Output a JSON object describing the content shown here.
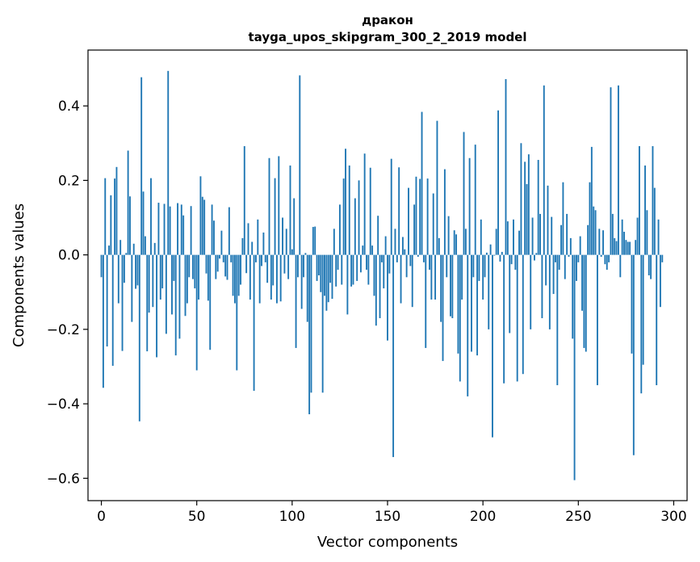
{
  "chart_data": {
    "type": "bar",
    "title": [
      "дракон",
      "tayga_upos_skipgram_300_2_2019 model"
    ],
    "xlabel": "Vector components",
    "ylabel": "Components values",
    "xlim": [
      -7,
      307
    ],
    "ylim": [
      -0.66,
      0.55
    ],
    "xticks": [
      0,
      50,
      100,
      150,
      200,
      250,
      300
    ],
    "xtick_labels": [
      "0",
      "50",
      "100",
      "150",
      "200",
      "250",
      "300"
    ],
    "yticks": [
      -0.6,
      -0.4,
      -0.2,
      0.0,
      0.2,
      0.4
    ],
    "ytick_labels": [
      "−0.6",
      "−0.4",
      "−0.2",
      "0.0",
      "0.2",
      "0.4"
    ],
    "bar_color": "#1f77b4",
    "grid": false,
    "legend": "none",
    "values": [
      -0.06,
      -0.357,
      0.206,
      -0.246,
      0.025,
      0.16,
      -0.298,
      0.205,
      0.236,
      -0.13,
      0.04,
      -0.258,
      -0.075,
      0.005,
      0.28,
      0.157,
      -0.18,
      0.03,
      -0.091,
      -0.082,
      -0.447,
      0.477,
      0.17,
      0.05,
      -0.259,
      -0.155,
      0.206,
      -0.14,
      0.032,
      -0.275,
      0.14,
      -0.12,
      -0.09,
      0.137,
      -0.212,
      0.494,
      0.13,
      -0.16,
      -0.07,
      -0.27,
      0.139,
      -0.225,
      0.135,
      0.106,
      -0.164,
      -0.13,
      -0.06,
      0.131,
      -0.065,
      -0.09,
      -0.31,
      -0.12,
      0.211,
      0.156,
      0.148,
      -0.05,
      -0.123,
      -0.255,
      0.135,
      0.092,
      -0.065,
      -0.045,
      -0.01,
      0.065,
      -0.02,
      -0.058,
      -0.067,
      0.128,
      -0.02,
      -0.11,
      -0.13,
      -0.31,
      -0.11,
      -0.08,
      0.045,
      0.292,
      -0.049,
      0.085,
      -0.12,
      0.035,
      -0.365,
      -0.02,
      0.095,
      -0.13,
      -0.03,
      0.06,
      -0.02,
      -0.075,
      0.26,
      -0.12,
      -0.082,
      0.206,
      -0.13,
      0.265,
      -0.125,
      0.1,
      -0.05,
      0.07,
      -0.065,
      0.24,
      0.015,
      0.152,
      -0.25,
      -0.06,
      0.482,
      -0.145,
      -0.06,
      0.005,
      -0.18,
      -0.428,
      -0.37,
      0.075,
      0.076,
      -0.07,
      -0.055,
      -0.1,
      -0.37,
      -0.11,
      -0.15,
      -0.127,
      -0.075,
      -0.118,
      0.07,
      -0.085,
      -0.04,
      0.135,
      -0.08,
      0.205,
      0.285,
      -0.16,
      0.24,
      -0.085,
      -0.08,
      0.152,
      -0.07,
      0.2,
      -0.047,
      0.025,
      0.272,
      -0.04,
      -0.08,
      0.234,
      0.025,
      -0.11,
      -0.19,
      0.105,
      -0.17,
      -0.02,
      -0.09,
      0.05,
      -0.23,
      -0.05,
      0.258,
      -0.543,
      0.07,
      -0.02,
      0.235,
      -0.13,
      0.048,
      0.015,
      -0.06,
      0.18,
      -0.03,
      -0.14,
      0.135,
      0.21,
      -0.005,
      0.204,
      0.384,
      -0.02,
      -0.25,
      0.205,
      -0.04,
      -0.12,
      0.165,
      -0.12,
      0.36,
      0.045,
      -0.18,
      -0.285,
      0.23,
      -0.06,
      0.104,
      -0.165,
      -0.17,
      0.066,
      0.055,
      -0.265,
      -0.34,
      -0.12,
      0.33,
      0.07,
      -0.38,
      0.26,
      -0.26,
      -0.06,
      0.296,
      -0.27,
      -0.07,
      0.095,
      -0.12,
      -0.06,
      0.006,
      -0.2,
      0.028,
      -0.49,
      -0.002,
      0.07,
      0.388,
      -0.018,
      0.008,
      -0.345,
      0.472,
      0.09,
      -0.21,
      -0.025,
      0.095,
      -0.04,
      -0.34,
      0.065,
      0.3,
      -0.32,
      0.25,
      0.19,
      0.27,
      -0.2,
      0.1,
      -0.015,
      0.005,
      0.255,
      0.11,
      -0.17,
      0.455,
      -0.082,
      0.186,
      -0.2,
      0.102,
      -0.105,
      -0.02,
      -0.35,
      -0.04,
      0.08,
      0.195,
      -0.065,
      0.11,
      -0.005,
      0.045,
      -0.225,
      -0.605,
      -0.07,
      -0.02,
      0.05,
      -0.15,
      -0.25,
      -0.26,
      0.08,
      0.195,
      0.29,
      0.13,
      0.12,
      -0.35,
      0.07,
      -0.005,
      0.066,
      -0.025,
      -0.04,
      -0.02,
      0.45,
      0.11,
      0.045,
      0.037,
      0.455,
      -0.06,
      0.095,
      0.062,
      0.04,
      0.035,
      0.035,
      -0.265,
      -0.538,
      0.04,
      0.1,
      0.292,
      -0.372,
      -0.295,
      0.24,
      0.12,
      -0.055,
      -0.065,
      0.292,
      0.18,
      -0.35,
      0.095,
      -0.14,
      -0.02
    ]
  }
}
